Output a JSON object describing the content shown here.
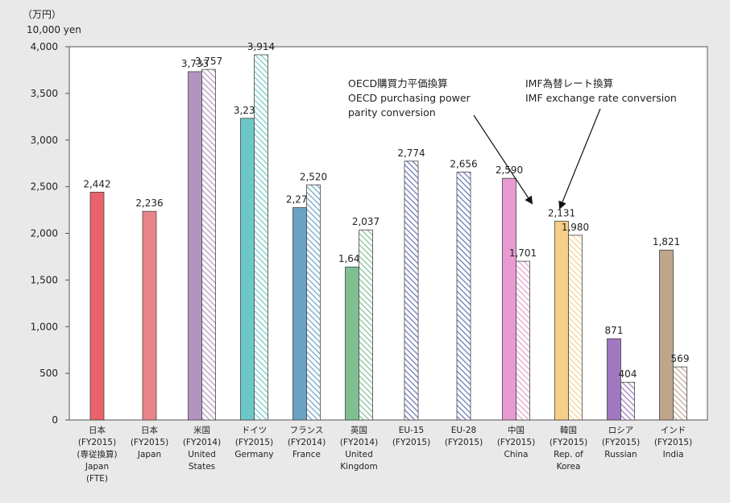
{
  "chart_data": {
    "type": "bar",
    "unit_ja": "（万円）",
    "unit_en": "10,000 yen",
    "ylim": [
      0,
      4000
    ],
    "yticks": [
      0,
      500,
      1000,
      1500,
      2000,
      2500,
      3000,
      3500,
      4000
    ],
    "ytick_labels": [
      "0",
      "500",
      "1,000",
      "1,500",
      "2,000",
      "2,500",
      "3,000",
      "3,500",
      "4,000"
    ],
    "grid": false,
    "series_styles": [
      {
        "key": "oecd_ppp",
        "style": "solid"
      },
      {
        "key": "imf_rate",
        "style": "hatched"
      }
    ],
    "annotations": [
      {
        "id": "oecd",
        "lines": [
          "OECD購買力平価換算",
          "OECD purchasing power",
          "parity conversion"
        ],
        "points_to": "韓国 OECD bar"
      },
      {
        "id": "imf",
        "lines": [
          "IMF為替レート換算",
          "IMF exchange rate conversion"
        ],
        "points_to": "韓国 IMF bar"
      }
    ],
    "categories": [
      {
        "lines": [
          "日本",
          "(FY2015)",
          "(専従換算)",
          "Japan",
          "(FTE)"
        ],
        "color": "#e8636b",
        "bars": [
          {
            "value": 2442,
            "label": "2,442",
            "style": "solid"
          }
        ]
      },
      {
        "lines": [
          "日本",
          "(FY2015)",
          "Japan"
        ],
        "color": "#e8858a",
        "bars": [
          {
            "value": 2236,
            "label": "2,236",
            "style": "solid"
          }
        ]
      },
      {
        "lines": [
          "米国",
          "(FY2014)",
          "United",
          "States"
        ],
        "color": "#b294c0",
        "bars": [
          {
            "value": 3733,
            "label": "3,733",
            "style": "solid"
          },
          {
            "value": 3757,
            "label": "3,757",
            "style": "hatched"
          }
        ]
      },
      {
        "lines": [
          "ドイツ",
          "(FY2015)",
          "Germany"
        ],
        "color": "#6cc8c8",
        "bars": [
          {
            "value": 3233,
            "label": "3,233",
            "style": "solid"
          },
          {
            "value": 3914,
            "label": "3,914",
            "style": "hatched"
          }
        ]
      },
      {
        "lines": [
          "フランス",
          "(FY2014)",
          "France"
        ],
        "color": "#6aa2c4",
        "bars": [
          {
            "value": 2276,
            "label": "2,276",
            "style": "solid"
          },
          {
            "value": 2520,
            "label": "2,520",
            "style": "hatched"
          }
        ]
      },
      {
        "lines": [
          "英国",
          "(FY2014)",
          "United",
          "Kingdom"
        ],
        "color": "#7fbf92",
        "bars": [
          {
            "value": 1640,
            "label": "1,640",
            "style": "solid"
          },
          {
            "value": 2037,
            "label": "2,037",
            "style": "hatched"
          }
        ]
      },
      {
        "lines": [
          "EU-15",
          "(FY2015)"
        ],
        "color": "#6670b4",
        "bars": [
          {
            "value": 2774,
            "label": "2,774",
            "style": "hatched"
          }
        ]
      },
      {
        "lines": [
          "EU-28",
          "(FY2015)"
        ],
        "color": "#6670b4",
        "bars": [
          {
            "value": 2656,
            "label": "2,656",
            "style": "hatched"
          }
        ]
      },
      {
        "lines": [
          "中国",
          "(FY2015)",
          "China"
        ],
        "color": "#e89ad2",
        "bars": [
          {
            "value": 2590,
            "label": "2,590",
            "style": "solid"
          },
          {
            "value": 1701,
            "label": "1,701",
            "style": "hatched"
          }
        ]
      },
      {
        "lines": [
          "韓国",
          "(FY2015)",
          "Rep. of",
          "Korea"
        ],
        "color": "#f6cf86",
        "bars": [
          {
            "value": 2131,
            "label": "2,131",
            "style": "solid"
          },
          {
            "value": 1980,
            "label": "1,980",
            "style": "hatched"
          }
        ]
      },
      {
        "lines": [
          "ロシア",
          "(FY2015)",
          "Russian"
        ],
        "color": "#9f78c0",
        "bars": [
          {
            "value": 871,
            "label": "871",
            "style": "solid"
          },
          {
            "value": 404,
            "label": "404",
            "style": "hatched"
          }
        ]
      },
      {
        "lines": [
          "インド",
          "(FY2015)",
          "India"
        ],
        "color": "#bfa58a",
        "bars": [
          {
            "value": 1821,
            "label": "1,821",
            "style": "solid"
          },
          {
            "value": 569,
            "label": "569",
            "style": "hatched"
          }
        ]
      }
    ]
  }
}
